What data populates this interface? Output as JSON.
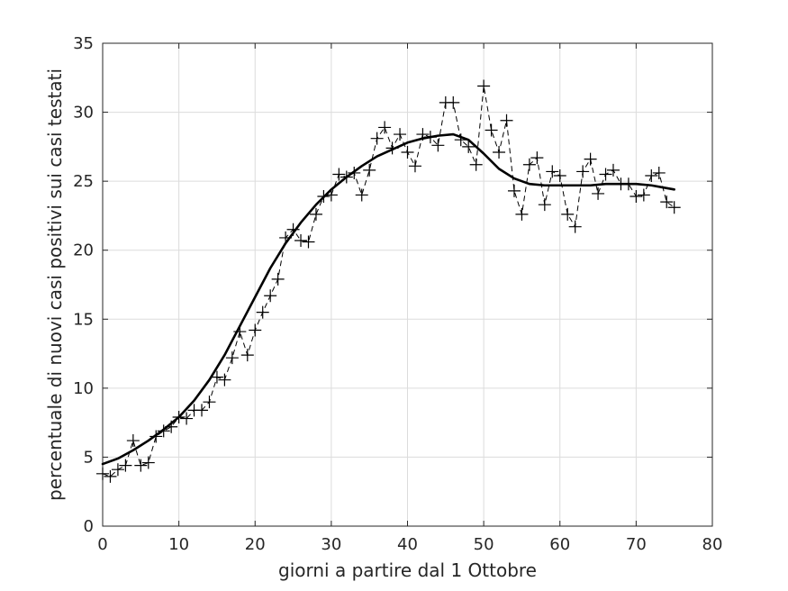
{
  "chart_data": {
    "type": "line",
    "title": "",
    "xlabel": "giorni a partire dal 1 Ottobre",
    "ylabel": "percentuale di nuovi casi positivi sui casi testati",
    "xlim": [
      0,
      80
    ],
    "ylim": [
      0,
      35
    ],
    "xticks": [
      0,
      10,
      20,
      30,
      40,
      50,
      60,
      70,
      80
    ],
    "yticks": [
      0,
      5,
      10,
      15,
      20,
      25,
      30,
      35
    ],
    "grid": true,
    "legend": "none",
    "colors": {
      "axes": "#262626",
      "grid": "#dcdcdc",
      "data": "#000000"
    },
    "series": [
      {
        "style": "dashed-plus-markers",
        "x": [
          0,
          1,
          2,
          3,
          4,
          5,
          6,
          7,
          8,
          9,
          10,
          11,
          12,
          13,
          14,
          15,
          16,
          17,
          18,
          19,
          20,
          21,
          22,
          23,
          24,
          25,
          26,
          27,
          28,
          29,
          30,
          31,
          32,
          33,
          34,
          35,
          36,
          37,
          38,
          39,
          40,
          41,
          42,
          43,
          44,
          45,
          46,
          47,
          48,
          49,
          50,
          51,
          52,
          53,
          54,
          55,
          56,
          57,
          58,
          59,
          60,
          61,
          62,
          63,
          64,
          65,
          66,
          67,
          68,
          69,
          70,
          71,
          72,
          73,
          74,
          75
        ],
        "values": [
          3.8,
          3.6,
          4.1,
          4.4,
          6.2,
          4.4,
          4.6,
          6.5,
          6.9,
          7.2,
          7.9,
          7.8,
          8.4,
          8.4,
          9.0,
          10.8,
          10.6,
          12.2,
          14.1,
          12.4,
          14.2,
          15.5,
          16.7,
          17.9,
          20.9,
          21.5,
          20.7,
          20.6,
          22.6,
          23.9,
          24.0,
          25.5,
          25.3,
          25.6,
          24.0,
          25.8,
          28.1,
          28.9,
          27.4,
          28.4,
          27.1,
          26.1,
          28.4,
          28.2,
          27.6,
          30.7,
          30.7,
          28.0,
          27.5,
          26.2,
          31.9,
          28.7,
          27.1,
          29.4,
          24.3,
          22.6,
          26.2,
          26.7,
          23.3,
          25.7,
          25.4,
          22.6,
          21.7,
          25.7,
          26.6,
          24.1,
          25.5,
          25.8,
          24.8,
          24.8,
          23.9,
          24.0,
          25.4,
          25.6,
          23.5,
          23.1
        ]
      },
      {
        "style": "solid-thick",
        "x": [
          0,
          2,
          4,
          6,
          8,
          10,
          12,
          14,
          16,
          18,
          20,
          22,
          24,
          26,
          28,
          30,
          32,
          34,
          36,
          38,
          40,
          42,
          44,
          46,
          48,
          50,
          52,
          54,
          56,
          58,
          60,
          62,
          64,
          66,
          68,
          70,
          72,
          74,
          75
        ],
        "values": [
          4.5,
          4.9,
          5.5,
          6.2,
          7.0,
          7.9,
          9.1,
          10.6,
          12.4,
          14.5,
          16.6,
          18.7,
          20.5,
          22.0,
          23.3,
          24.4,
          25.3,
          26.1,
          26.8,
          27.3,
          27.8,
          28.1,
          28.3,
          28.4,
          28.0,
          27.0,
          25.9,
          25.2,
          24.8,
          24.7,
          24.7,
          24.7,
          24.7,
          24.8,
          24.8,
          24.8,
          24.7,
          24.5,
          24.4
        ]
      }
    ]
  }
}
